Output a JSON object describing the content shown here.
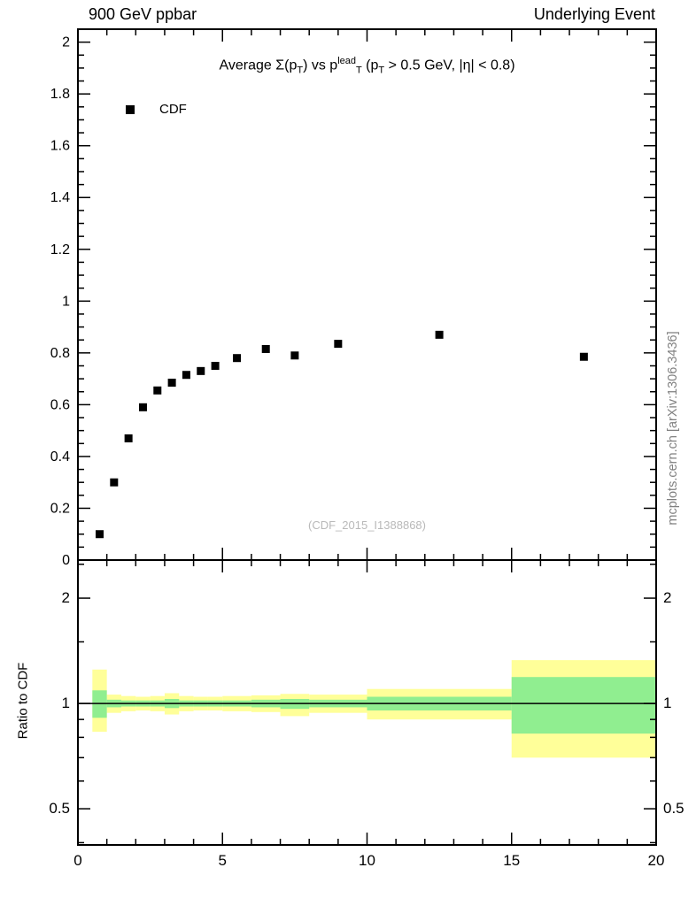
{
  "header": {
    "left": "900 GeV ppbar",
    "right": "Underlying Event"
  },
  "title_parts": [
    {
      "t": "Average ",
      "s": "n"
    },
    {
      "t": "Σ",
      "s": "n"
    },
    {
      "t": "(p",
      "s": "n"
    },
    {
      "t": "T",
      "s": "sub"
    },
    {
      "t": ") vs p",
      "s": "n"
    },
    {
      "t": "lead",
      "s": "sup"
    },
    {
      "t": "T",
      "s": "sub"
    },
    {
      "t": " (p",
      "s": "n"
    },
    {
      "t": "T",
      "s": "sub"
    },
    {
      "t": " > 0.5 GeV, |η| < 0.8)",
      "s": "n"
    }
  ],
  "legend": {
    "marker": "black-filled-square",
    "label": "CDF"
  },
  "watermark": "(CDF_2015_I1388868)",
  "side_credit": "mcplots.cern.ch [arXiv:1306.3436]",
  "colors": {
    "outer_band": "#ffff99",
    "inner_band": "#90ee90",
    "marker": "#000000",
    "axis": "#000000",
    "watermark": "#b9b9b9",
    "credit": "#808080"
  },
  "chart_data": [
    {
      "type": "scatter",
      "panel": "main",
      "title": "Average Σ(p_T) vs p_T^lead (p_T > 0.5 GeV, |η| < 0.8)",
      "xlim": [
        0,
        20
      ],
      "ylim": [
        0,
        2.05
      ],
      "xticks": {
        "major": [
          0,
          5,
          10,
          15,
          20
        ],
        "minor_step": 1,
        "labels": [
          "0",
          "5",
          "10",
          "15",
          "20"
        ]
      },
      "yticks": {
        "major": [
          0,
          0.2,
          0.4,
          0.6,
          0.8,
          1.0,
          1.2,
          1.4,
          1.6,
          1.8,
          2.0
        ],
        "labels": [
          "0",
          "0.2",
          "0.4",
          "0.6",
          "0.8",
          "1",
          "1.2",
          "1.4",
          "1.6",
          "1.8",
          "2"
        ],
        "minor_step": 0.05
      },
      "series": [
        {
          "name": "CDF",
          "marker": "filled-square",
          "color": "#000000",
          "x": [
            0.75,
            1.25,
            1.75,
            2.25,
            2.75,
            3.25,
            3.75,
            4.25,
            4.75,
            5.5,
            6.5,
            7.5,
            9.0,
            12.5,
            17.5
          ],
          "y": [
            0.1,
            0.3,
            0.47,
            0.59,
            0.655,
            0.685,
            0.715,
            0.73,
            0.75,
            0.78,
            0.815,
            0.79,
            0.835,
            0.87,
            0.785
          ]
        }
      ]
    },
    {
      "type": "band-ratio",
      "panel": "ratio",
      "ylabel": "Ratio to CDF",
      "yscale": "log",
      "xlim": [
        0,
        20
      ],
      "ylim": [
        0.394,
        2.57
      ],
      "yticks": {
        "major": [
          0.5,
          1,
          2
        ],
        "labels": [
          "0.5",
          "1",
          "2"
        ],
        "minor": [
          0.4,
          0.6,
          0.7,
          0.8,
          0.9,
          1.5,
          2.5
        ]
      },
      "xticks": {
        "major": [
          0,
          5,
          10,
          15,
          20
        ],
        "minor_step": 1,
        "labels": [
          "0",
          "5",
          "10",
          "15",
          "20"
        ]
      },
      "reference_line": 1,
      "bands": [
        {
          "x": [
            0.5,
            1.0
          ],
          "outer": [
            0.83,
            1.25
          ],
          "inner": [
            0.91,
            1.09
          ]
        },
        {
          "x": [
            1.0,
            1.5
          ],
          "outer": [
            0.94,
            1.06
          ],
          "inner": [
            0.975,
            1.025
          ]
        },
        {
          "x": [
            1.5,
            2.0
          ],
          "outer": [
            0.95,
            1.05
          ],
          "inner": [
            0.98,
            1.02
          ]
        },
        {
          "x": [
            2.0,
            2.5
          ],
          "outer": [
            0.955,
            1.045
          ],
          "inner": [
            0.98,
            1.02
          ]
        },
        {
          "x": [
            2.5,
            3.0
          ],
          "outer": [
            0.95,
            1.05
          ],
          "inner": [
            0.98,
            1.02
          ]
        },
        {
          "x": [
            3.0,
            3.5
          ],
          "outer": [
            0.93,
            1.07
          ],
          "inner": [
            0.97,
            1.03
          ]
        },
        {
          "x": [
            3.5,
            4.0
          ],
          "outer": [
            0.95,
            1.05
          ],
          "inner": [
            0.98,
            1.02
          ]
        },
        {
          "x": [
            4.0,
            4.5
          ],
          "outer": [
            0.955,
            1.045
          ],
          "inner": [
            0.98,
            1.02
          ]
        },
        {
          "x": [
            4.5,
            5.0
          ],
          "outer": [
            0.955,
            1.045
          ],
          "inner": [
            0.98,
            1.02
          ]
        },
        {
          "x": [
            5.0,
            6.0
          ],
          "outer": [
            0.95,
            1.05
          ],
          "inner": [
            0.98,
            1.02
          ]
        },
        {
          "x": [
            6.0,
            7.0
          ],
          "outer": [
            0.945,
            1.055
          ],
          "inner": [
            0.975,
            1.025
          ]
        },
        {
          "x": [
            7.0,
            8.0
          ],
          "outer": [
            0.92,
            1.065
          ],
          "inner": [
            0.965,
            1.03
          ]
        },
        {
          "x": [
            8.0,
            10.0
          ],
          "outer": [
            0.94,
            1.06
          ],
          "inner": [
            0.975,
            1.025
          ]
        },
        {
          "x": [
            10.0,
            15.0
          ],
          "outer": [
            0.9,
            1.1
          ],
          "inner": [
            0.955,
            1.045
          ]
        },
        {
          "x": [
            15.0,
            20.0
          ],
          "outer": [
            0.7,
            1.33
          ],
          "inner": [
            0.82,
            1.19
          ]
        }
      ]
    }
  ]
}
